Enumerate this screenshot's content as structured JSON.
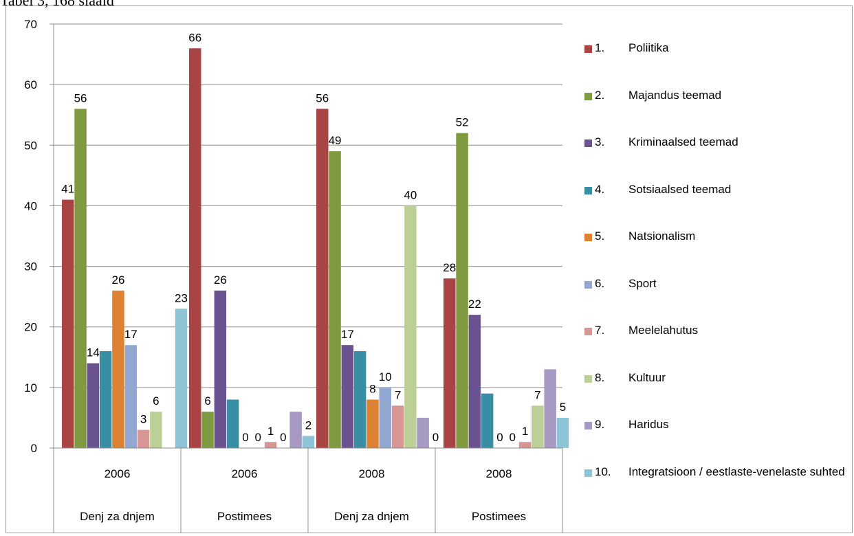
{
  "caption": "Tabel 3, 168 slaaid",
  "chart_data": {
    "type": "bar",
    "ylim": [
      0,
      70
    ],
    "yticks": [
      0,
      10,
      20,
      30,
      40,
      50,
      60,
      70
    ],
    "grid": true,
    "legend_position": "right",
    "groups": [
      {
        "year": "2006",
        "paper": "Denj za dnjem"
      },
      {
        "year": "2006",
        "paper": "Postimees"
      },
      {
        "year": "2008",
        "paper": "Denj za dnjem"
      },
      {
        "year": "2008",
        "paper": "Postimees"
      }
    ],
    "series": [
      {
        "number": "1.",
        "name": "Poliitika",
        "color": "#a84444",
        "values": [
          41,
          66,
          56,
          28
        ]
      },
      {
        "number": "2.",
        "name": "Majandus teemad",
        "color": "#7f9a40",
        "values": [
          56,
          6,
          49,
          52
        ]
      },
      {
        "number": "3.",
        "name": "Kriminaalsed teemad",
        "color": "#6b5390",
        "values": [
          14,
          26,
          17,
          22
        ]
      },
      {
        "number": "4.",
        "name": "Sotsiaalsed teemad",
        "color": "#3a8ea3",
        "values": [
          16,
          8,
          16,
          9
        ]
      },
      {
        "number": "5.",
        "name": "Natsionalism",
        "color": "#dd8233",
        "values": [
          26,
          0,
          8,
          0
        ]
      },
      {
        "number": "6.",
        "name": "Sport",
        "color": "#93a8d1",
        "values": [
          17,
          0,
          10,
          0
        ]
      },
      {
        "number": "7.",
        "name": "Meelelahutus",
        "color": "#d69694",
        "values": [
          3,
          1,
          7,
          1
        ]
      },
      {
        "number": "8.",
        "name": "Kultuur",
        "color": "#bccf96",
        "values": [
          6,
          0,
          40,
          7
        ]
      },
      {
        "number": "9.",
        "name": "Haridus",
        "color": "#a69ac3",
        "values": [
          null,
          6,
          5,
          13
        ]
      },
      {
        "number": "10.",
        "name": "Integratsioon / eestlaste-venelaste suhted",
        "color": "#8fc4d6",
        "values": [
          23,
          2,
          0,
          5
        ]
      }
    ],
    "data_labels": [
      [
        {
          "series": 0,
          "text": "41"
        },
        {
          "series": 1,
          "text": "56"
        },
        {
          "series": 2,
          "text": "14"
        },
        {
          "series": 4,
          "text": "26"
        },
        {
          "series": 5,
          "text": "17"
        },
        {
          "series": 6,
          "text": "3"
        },
        {
          "series": 7,
          "text": "6"
        },
        {
          "series": 9,
          "text": "23"
        }
      ],
      [
        {
          "series": 0,
          "text": "66"
        },
        {
          "series": 1,
          "text": "6"
        },
        {
          "series": 2,
          "text": "26"
        },
        {
          "series": 4,
          "text": "0"
        },
        {
          "series": 5,
          "text": "0"
        },
        {
          "series": 6,
          "text": "1"
        },
        {
          "series": 7,
          "text": "0"
        },
        {
          "series": 9,
          "text": "2"
        }
      ],
      [
        {
          "series": 0,
          "text": "56"
        },
        {
          "series": 1,
          "text": "49"
        },
        {
          "series": 2,
          "text": "17"
        },
        {
          "series": 4,
          "text": "8"
        },
        {
          "series": 5,
          "text": "10"
        },
        {
          "series": 6,
          "text": "7"
        },
        {
          "series": 7,
          "text": "40"
        },
        {
          "series": 9,
          "text": "0"
        }
      ],
      [
        {
          "series": 0,
          "text": "28"
        },
        {
          "series": 1,
          "text": "52"
        },
        {
          "series": 2,
          "text": "22"
        },
        {
          "series": 4,
          "text": "0"
        },
        {
          "series": 5,
          "text": "0"
        },
        {
          "series": 6,
          "text": "1"
        },
        {
          "series": 7,
          "text": "7"
        },
        {
          "series": 9,
          "text": "5"
        }
      ]
    ]
  }
}
